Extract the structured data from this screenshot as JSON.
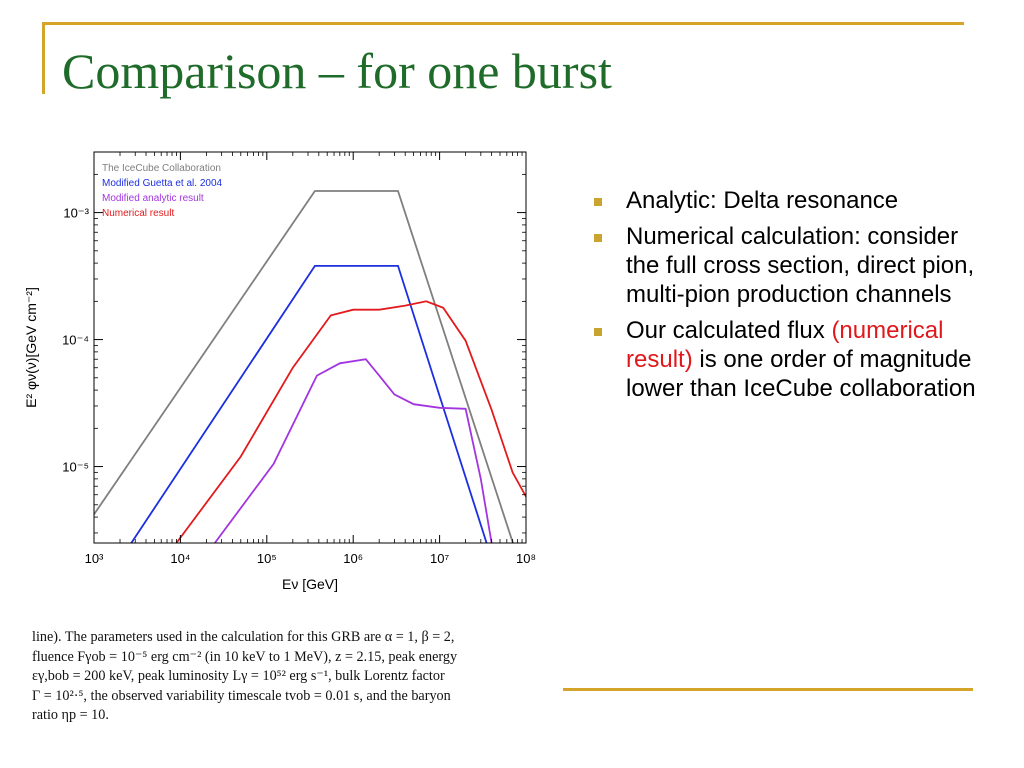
{
  "slide": {
    "title": "Comparison – for one burst",
    "accent_color": "#d4a52a",
    "title_color": "#1f6b2a"
  },
  "bullets": [
    {
      "text": "Analytic: Delta resonance"
    },
    {
      "text": "Numerical calculation: consider the full cross section, direct pion, multi-pion production channels"
    },
    {
      "text_before": "Our calculated flux ",
      "highlight": "(numerical result)",
      "text_after": " is one order of magnitude lower than IceCube collaboration",
      "highlight_color": "#e0181b"
    }
  ],
  "caption": {
    "lines": [
      "line). The parameters used in the calculation for this GRB are α = 1, β = 2,",
      "fluence Fγob = 10⁻⁵ erg cm⁻² (in 10 keV to 1 MeV), z = 2.15, peak energy",
      "εγ,bob = 200 keV, peak luminosity Lγ = 10⁵² erg s⁻¹, bulk Lorentz factor",
      "Γ = 10²·⁵, the observed variability timescale tvob = 0.01 s, and the baryon",
      "ratio ηp = 10."
    ]
  },
  "chart_data": {
    "type": "line",
    "xlabel": "Eν [GeV]",
    "ylabel": "E² φν(ν)[GeV cm⁻²]",
    "xscale": "log",
    "yscale": "log",
    "xlim": [
      1000,
      100000000
    ],
    "ylim": [
      2.5e-06,
      0.003
    ],
    "x_ticks": [
      {
        "v": 1000,
        "label": "10³"
      },
      {
        "v": 10000,
        "label": "10⁴"
      },
      {
        "v": 100000,
        "label": "10⁵"
      },
      {
        "v": 1000000,
        "label": "10⁶"
      },
      {
        "v": 10000000,
        "label": "10⁷"
      },
      {
        "v": 100000000,
        "label": "10⁸"
      }
    ],
    "y_ticks": [
      {
        "v": 1e-05,
        "label": "10⁻⁵"
      },
      {
        "v": 0.0001,
        "label": "10⁻⁴"
      },
      {
        "v": 0.001,
        "label": "10⁻³"
      }
    ],
    "legend_position": "top-left",
    "series": [
      {
        "name": "The IceCube Collaboration",
        "color": "#7f7f7f",
        "points": [
          [
            1000,
            4.2e-06
          ],
          [
            360000,
            0.00148
          ],
          [
            3300000,
            0.00148
          ],
          [
            75000000,
            2.2e-06
          ]
        ]
      },
      {
        "name": "Modified Guetta et al. 2004",
        "color": "#1c2fe0",
        "points": [
          [
            2700,
            2.5e-06
          ],
          [
            360000,
            0.00038
          ],
          [
            3300000,
            0.00038
          ],
          [
            35000000,
            2.5e-06
          ]
        ]
      },
      {
        "name": "Modified analytic result",
        "color": "#a335e0",
        "points": [
          [
            25000,
            2.5e-06
          ],
          [
            120000,
            1.05e-05
          ],
          [
            380000,
            5.2e-05
          ],
          [
            700000,
            6.5e-05
          ],
          [
            1400000,
            7e-05
          ],
          [
            2000000,
            5.2e-05
          ],
          [
            3000000,
            3.7e-05
          ],
          [
            5000000,
            3.1e-05
          ],
          [
            10000000,
            2.9e-05
          ],
          [
            20000000,
            2.85e-05
          ],
          [
            30000000,
            8e-06
          ],
          [
            40000000,
            2.5e-06
          ]
        ]
      },
      {
        "name": "Numerical result",
        "color": "#e31a1c",
        "points": [
          [
            9000,
            2.5e-06
          ],
          [
            50000,
            1.2e-05
          ],
          [
            200000,
            6e-05
          ],
          [
            550000,
            0.000155
          ],
          [
            1000000,
            0.000172
          ],
          [
            2000000,
            0.000172
          ],
          [
            4000000,
            0.000185
          ],
          [
            7000000,
            0.0002
          ],
          [
            11000000,
            0.000178
          ],
          [
            20000000,
            9.8e-05
          ],
          [
            40000000,
            2.8e-05
          ],
          [
            70000000,
            9e-06
          ],
          [
            100000000,
            5.8e-06
          ]
        ]
      }
    ]
  }
}
